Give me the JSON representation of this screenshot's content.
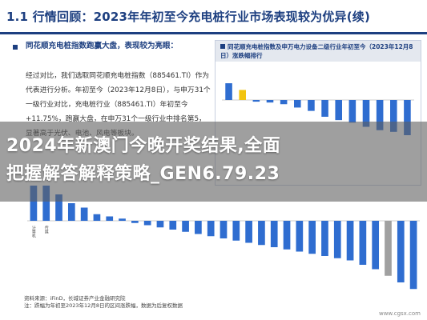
{
  "title": "1.1  行情回顾：2023年年初至今充电桩行业市场表现较为优异(续)",
  "left": {
    "heading": "同花顺充电桩指数跑赢大盘，表现较为亮眼：",
    "body": "经过对比，我们选取同花顺充电桩指数（885461.TI）作为代表进行分析。年初至今（2023年12月8日），与申万31个一级行业对比，充电桩行业（885461.TI）年初至今+11.75%，跑赢大盘，在申万31个一级行业中排名第5，显著高于光伏、电池、风电等板块。"
  },
  "chart_panel": {
    "title": "同花顺充电桩指数及申万电力设备二级行业年初至今（2023年12月8日）涨跌幅排行"
  },
  "chart_data": [
    {
      "type": "bar",
      "categories": [
        "",
        "",
        "",
        "",
        "",
        "",
        "",
        "",
        "",
        "",
        "",
        "",
        "",
        ""
      ],
      "values": [
        20,
        12,
        -2,
        -3,
        -5,
        -9,
        -13,
        -20,
        -24,
        -27,
        -32,
        -36,
        -38,
        -42
      ],
      "colors": [
        "#2f6dd0",
        "#f2c40f",
        "#2f6dd0",
        "#2f6dd0",
        "#2f6dd0",
        "#2f6dd0",
        "#2f6dd0",
        "#2f6dd0",
        "#2f6dd0",
        "#2f6dd0",
        "#2f6dd0",
        "#2f6dd0",
        "#2f6dd0",
        "#2f6dd0"
      ]
    },
    {
      "type": "bar",
      "categories": [
        "计算机",
        "传媒",
        "",
        "",
        "",
        "",
        "",
        "",
        "",
        "",
        "",
        "",
        "",
        "",
        "",
        "",
        "",
        "",
        "",
        "",
        "",
        "",
        "",
        "",
        "",
        "",
        "",
        "",
        "",
        "",
        ""
      ],
      "values": [
        32,
        18,
        12,
        8,
        6,
        3,
        2,
        1,
        -1,
        -2,
        -3,
        -4,
        -5,
        -6,
        -7,
        -8,
        -9,
        -10,
        -11,
        -12,
        -13,
        -14,
        -15,
        -16,
        -17,
        -18,
        -20,
        -22,
        -25,
        -28,
        -31
      ],
      "colors": [
        "#2f6dd0",
        "#2f6dd0",
        "#2f6dd0",
        "#2f6dd0",
        "#2f6dd0",
        "#2f6dd0",
        "#2f6dd0",
        "#2f6dd0",
        "#2f6dd0",
        "#2f6dd0",
        "#2f6dd0",
        "#2f6dd0",
        "#2f6dd0",
        "#2f6dd0",
        "#2f6dd0",
        "#2f6dd0",
        "#2f6dd0",
        "#2f6dd0",
        "#2f6dd0",
        "#2f6dd0",
        "#2f6dd0",
        "#2f6dd0",
        "#2f6dd0",
        "#2f6dd0",
        "#2f6dd0",
        "#2f6dd0",
        "#2f6dd0",
        "#2f6dd0",
        "#a0a0a0",
        "#2f6dd0",
        "#2f6dd0"
      ]
    }
  ],
  "overlay": {
    "line1": "2024年新澳门今晚开奖结果,全面",
    "line2": "把握解答解释策略_GEN6.79.23"
  },
  "source": {
    "line1": "资料来源：iFinD，长城证券产业金融研究院",
    "line2": "注：跌幅为年初至2023年12月8日的区间涨跌幅，数据为后复权数据"
  },
  "watermark": "www.cgsx.com"
}
